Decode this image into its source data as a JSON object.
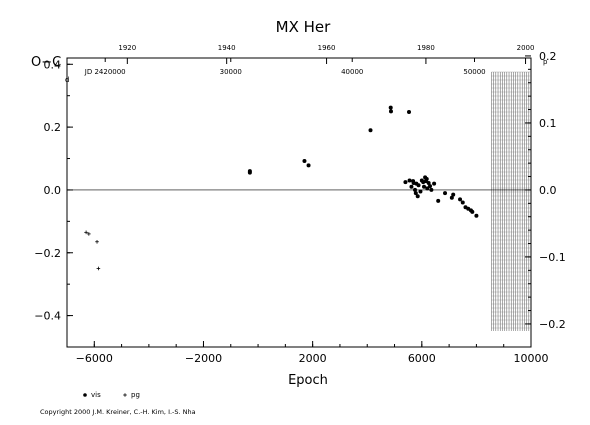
{
  "chart_data": {
    "type": "scatter",
    "title": "MX Her",
    "xlabel": "Epoch",
    "ylabel": "O−C",
    "y_unit": "d",
    "y2_unit": "p",
    "xlim": [
      -7000,
      10000
    ],
    "ylim": [
      -0.5,
      0.42
    ],
    "y2lim": [
      -0.2,
      0.2
    ],
    "x_ticks": [
      -6000,
      -2000,
      2000,
      6000,
      10000
    ],
    "x_tick_labels": [
      "−6000",
      "−2000",
      "2000",
      "6000",
      "10000"
    ],
    "y_ticks": [
      -0.4,
      -0.2,
      0.0,
      0.2,
      0.4
    ],
    "y_tick_labels": [
      "−0.4",
      "−0.2",
      "0.0",
      "0.2",
      "0.4"
    ],
    "y2_ticks": [
      -0.2,
      -0.1,
      0.0,
      0.1,
      0.2
    ],
    "y2_tick_labels": [
      "−0.2",
      "−0.1",
      "0.0",
      "0.1",
      "0.2"
    ],
    "year_axis_ticks": [
      {
        "year": "1920",
        "epoch": -4790
      },
      {
        "year": "1940",
        "epoch": -1150
      },
      {
        "year": "1960",
        "epoch": 2510
      },
      {
        "year": "1980",
        "epoch": 6150
      },
      {
        "year": "2000",
        "epoch": 9800
      }
    ],
    "jd_axis_ticks": [
      {
        "label": "JD 2420000",
        "epoch": -5600
      },
      {
        "label": "30000",
        "epoch": -1000
      },
      {
        "label": "40000",
        "epoch": 3450
      },
      {
        "label": "50000",
        "epoch": 7930
      }
    ],
    "hatched_region": {
      "from": 8550,
      "to": 10000
    },
    "series": [
      {
        "name": "vis",
        "marker": "filled-circle",
        "points": [
          [
            -300,
            0.06
          ],
          [
            -300,
            0.055
          ],
          [
            1700,
            0.092
          ],
          [
            1850,
            0.078
          ],
          [
            4120,
            0.19
          ],
          [
            4860,
            0.262
          ],
          [
            4870,
            0.25
          ],
          [
            5530,
            0.248
          ],
          [
            5400,
            0.025
          ],
          [
            5550,
            0.03
          ],
          [
            5620,
            0.01
          ],
          [
            5680,
            0.028
          ],
          [
            5700,
            0.022
          ],
          [
            5750,
            0.0
          ],
          [
            5780,
            -0.01
          ],
          [
            5800,
            0.02
          ],
          [
            5850,
            -0.02
          ],
          [
            5880,
            0.015
          ],
          [
            5950,
            -0.005
          ],
          [
            6000,
            0.03
          ],
          [
            6050,
            0.025
          ],
          [
            6080,
            0.01
          ],
          [
            6120,
            0.04
          ],
          [
            6150,
            0.028
          ],
          [
            6180,
            0.035
          ],
          [
            6200,
            0.005
          ],
          [
            6250,
            0.022
          ],
          [
            6300,
            0.012
          ],
          [
            6350,
            0.0
          ],
          [
            6450,
            0.02
          ],
          [
            6600,
            -0.035
          ],
          [
            6850,
            -0.01
          ],
          [
            7100,
            -0.025
          ],
          [
            7150,
            -0.015
          ],
          [
            7400,
            -0.03
          ],
          [
            7500,
            -0.04
          ],
          [
            7600,
            -0.055
          ],
          [
            7700,
            -0.06
          ],
          [
            7800,
            -0.065
          ],
          [
            7850,
            -0.07
          ],
          [
            8000,
            -0.082
          ]
        ]
      },
      {
        "name": "pg",
        "marker": "plus",
        "points": [
          [
            -6300,
            -0.135
          ],
          [
            -6200,
            -0.14
          ],
          [
            -5900,
            -0.165
          ],
          [
            -5850,
            -0.25
          ]
        ]
      }
    ],
    "legend": [
      {
        "marker": "filled-circle",
        "label": "vis"
      },
      {
        "marker": "plus",
        "label": "pg"
      }
    ]
  },
  "copyright": "Copyright 2000 J.M. Kreiner, C.-H. Kim, I.-S. Nha"
}
